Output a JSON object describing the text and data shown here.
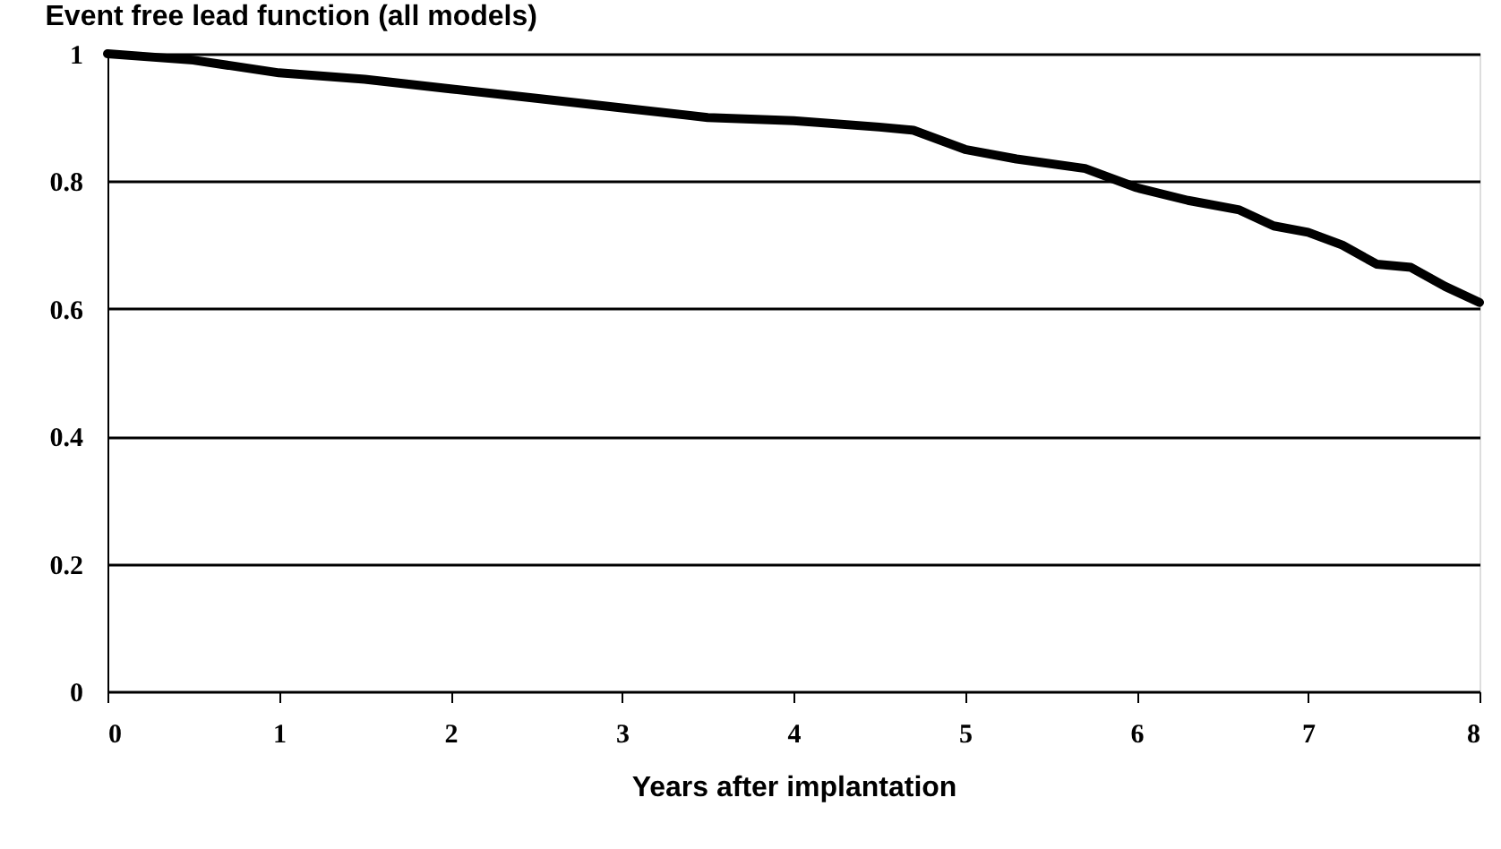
{
  "chart_data": {
    "type": "line",
    "title": "Event free lead function (all models)",
    "xlabel": "Years after implantation",
    "x": [
      0,
      0.5,
      1,
      1.5,
      2,
      2.5,
      3,
      3.5,
      4,
      4.5,
      4.7,
      5,
      5.3,
      5.7,
      6,
      6.3,
      6.6,
      6.8,
      7,
      7.2,
      7.4,
      7.6,
      7.8,
      8
    ],
    "series": [
      {
        "color": "#000000",
        "values": [
          1.0,
          0.99,
          0.97,
          0.96,
          0.945,
          0.93,
          0.915,
          0.9,
          0.895,
          0.885,
          0.88,
          0.85,
          0.835,
          0.82,
          0.79,
          0.77,
          0.755,
          0.73,
          0.72,
          0.7,
          0.67,
          0.665,
          0.635,
          0.61
        ]
      }
    ],
    "xlim": [
      0,
      8
    ],
    "xticks": [
      0,
      1,
      2,
      3,
      4,
      5,
      6,
      7,
      8
    ],
    "ylim": [
      0,
      1
    ],
    "yticks": [
      0,
      0.2,
      0.4,
      0.6,
      0.8,
      1
    ],
    "grid": "y",
    "marker": "none",
    "line_style": "solid"
  }
}
